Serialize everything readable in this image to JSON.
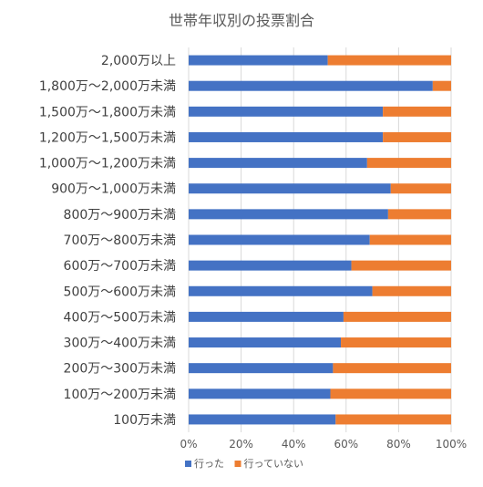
{
  "chart_data": {
    "type": "bar",
    "orientation": "horizontal",
    "stacked": true,
    "normalized_percent": true,
    "title": "世帯年収別の投票割合",
    "categories": [
      "2,000万以上",
      "1,800万～2,000万未満",
      "1,500万～1,800万未満",
      "1,200万～1,500万未満",
      "1,000万～1,200万未満",
      "900万～1,000万未満",
      "800万～900万未満",
      "700万～800万未満",
      "600万～700万未満",
      "500万～600万未満",
      "400万～500万未満",
      "300万～400万未満",
      "200万～300万未満",
      "100万～200万未満",
      "100万未満"
    ],
    "series": [
      {
        "name": "行った",
        "color": "#4472c4",
        "values": [
          53,
          93,
          74,
          74,
          68,
          77,
          76,
          69,
          62,
          70,
          59,
          58,
          55,
          54,
          56
        ]
      },
      {
        "name": "行っていない",
        "color": "#ed7d31",
        "values": [
          47,
          7,
          26,
          26,
          32,
          23,
          24,
          31,
          38,
          30,
          41,
          42,
          45,
          46,
          44
        ]
      }
    ],
    "xlim": [
      0,
      100
    ],
    "xticks": [
      0,
      20,
      40,
      60,
      80,
      100
    ],
    "xtick_labels": [
      "0%",
      "20%",
      "40%",
      "60%",
      "80%",
      "100%"
    ],
    "grid": true,
    "legend_position": "bottom"
  }
}
